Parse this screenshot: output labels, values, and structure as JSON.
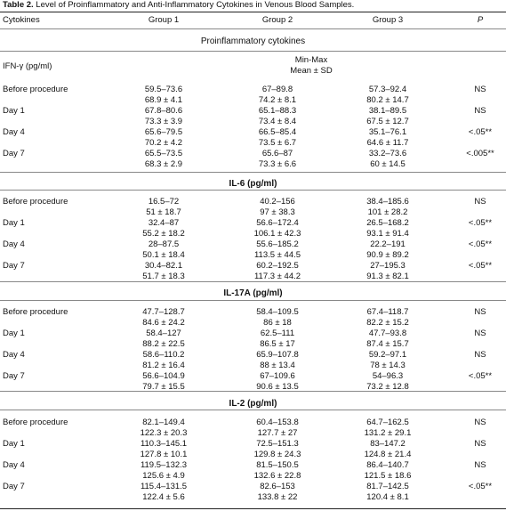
{
  "caption": {
    "label": "Table 2.",
    "text": " Level of Proinflammatory and Anti-Inflammatory Cytokines in Venous Blood Samples."
  },
  "header": {
    "cytokines": "Cytokines",
    "group1": "Group 1",
    "group2": "Group 2",
    "group3": "Group 3",
    "p": "P"
  },
  "proinflammatory_title": "Proinflammatory cytokines",
  "ifn_label": "IFN-γ (pg/ml)",
  "minmax": "Min-Max",
  "meansd": "Mean ± SD",
  "sections": [
    {
      "title": "",
      "rows": [
        {
          "label": "Before procedure",
          "g1": [
            "59.5–73.6",
            "68.9 ± 4.1"
          ],
          "g2": [
            "67–89.8",
            "74.2 ± 8.1"
          ],
          "g3": [
            "57.3–92.4",
            "80.2 ± 14.7"
          ],
          "p": "NS"
        },
        {
          "label": "Day 1",
          "g1": [
            "67.8–80.6",
            "73.3 ± 3.9"
          ],
          "g2": [
            "65.1–88.3",
            "73.4 ± 8.4"
          ],
          "g3": [
            "38.1–89.5",
            "67.5 ± 12.7"
          ],
          "p": "NS"
        },
        {
          "label": "Day 4",
          "g1": [
            "65.6–79.5",
            "70.2 ± 4.2"
          ],
          "g2": [
            "66.5–85.4",
            "73.5 ± 6.7"
          ],
          "g3": [
            "35.1–76.1",
            "64.6 ± 11.7"
          ],
          "p": "<.05**"
        },
        {
          "label": "Day 7",
          "g1": [
            "65.5–73.5",
            "68.3 ± 2.9"
          ],
          "g2": [
            "65.6–87",
            "73.3 ± 6.6"
          ],
          "g3": [
            "33.2–73.6",
            "60 ± 14.5"
          ],
          "p": "<.005**"
        }
      ]
    },
    {
      "title": "IL-6 (pg/ml)",
      "rows": [
        {
          "label": "Before procedure",
          "g1": [
            "16.5–72",
            "51 ± 18.7"
          ],
          "g2": [
            "40.2–156",
            "97 ± 38.3"
          ],
          "g3": [
            "38.4–185.6",
            "101 ± 28.2"
          ],
          "p": "NS"
        },
        {
          "label": "Day 1",
          "g1": [
            "32.4–87",
            "55.2 ± 18.2"
          ],
          "g2": [
            "56.6–172.4",
            "106.1 ± 42.3"
          ],
          "g3": [
            "26.5–168.2",
            "93.1 ± 91.4"
          ],
          "p": "<.05**"
        },
        {
          "label": "Day 4",
          "g1": [
            "28–87.5",
            "50.1 ± 18.4"
          ],
          "g2": [
            "55.6–185.2",
            "113.5 ± 44.5"
          ],
          "g3": [
            "22.2–191",
            "90.9 ± 89.2"
          ],
          "p": "<.05**"
        },
        {
          "label": "Day 7",
          "g1": [
            "30.4–82.1",
            "51.7 ± 18.3"
          ],
          "g2": [
            "60.2–192.5",
            "117.3 ± 44.2"
          ],
          "g3": [
            "27–195.3",
            "91.3 ± 82.1"
          ],
          "p": "<.05**"
        }
      ]
    },
    {
      "title": "IL-17A (pg/ml)",
      "rows": [
        {
          "label": "Before procedure",
          "g1": [
            "47.7–128.7",
            "84.6 ± 24.2"
          ],
          "g2": [
            "58.4–109.5",
            "86 ± 18"
          ],
          "g3": [
            "67.4–118.7",
            "82.2 ± 15.2"
          ],
          "p": "NS"
        },
        {
          "label": "Day 1",
          "g1": [
            "58.4–127",
            "88.2 ± 22.5"
          ],
          "g2": [
            "62.5–111",
            "86.5 ± 17"
          ],
          "g3": [
            "47.7–93.8",
            "87.4 ± 15.7"
          ],
          "p": "NS"
        },
        {
          "label": "Day 4",
          "g1": [
            "58.6–110.2",
            "81.2 ± 16.4"
          ],
          "g2": [
            "65.9–107.8",
            "88 ± 13.4"
          ],
          "g3": [
            "59.2–97.1",
            "78 ± 14.3"
          ],
          "p": "NS"
        },
        {
          "label": "Day 7",
          "g1": [
            "56.6–104.9",
            "79.7 ± 15.5"
          ],
          "g2": [
            "67–109.6",
            "90.6 ± 13.5"
          ],
          "g3": [
            "54–96.3",
            "73.2 ± 12.8"
          ],
          "p": "<.05**"
        }
      ]
    },
    {
      "title": "IL-2 (pg/ml)",
      "rows": [
        {
          "label": "Before procedure",
          "g1": [
            "82.1–149.4",
            "122.3 ± 20.3"
          ],
          "g2": [
            "60.4–153.8",
            "127.7 ± 27"
          ],
          "g3": [
            "64.7–162.5",
            "131.2 ± 29.1"
          ],
          "p": "NS"
        },
        {
          "label": "Day 1",
          "g1": [
            "110.3–145.1",
            "127.8 ± 10.1"
          ],
          "g2": [
            "72.5–151.3",
            "129.8 ± 24.3"
          ],
          "g3": [
            "83–147.2",
            "124.8 ± 21.4"
          ],
          "p": "NS"
        },
        {
          "label": "Day 4",
          "g1": [
            "119.5–132.3",
            "125.6 ± 4.9"
          ],
          "g2": [
            "81.5–150.5",
            "132.6 ± 22.8"
          ],
          "g3": [
            "86.4–140.7",
            "121.5 ± 18.6"
          ],
          "p": "NS"
        },
        {
          "label": "Day 7",
          "g1": [
            "115.4–131.5",
            "122.4 ± 5.6"
          ],
          "g2": [
            "82.6–153",
            "133.8 ± 22"
          ],
          "g3": [
            "81.7–142.5",
            "120.4 ± 8.1"
          ],
          "p": "<.05**"
        }
      ]
    }
  ]
}
